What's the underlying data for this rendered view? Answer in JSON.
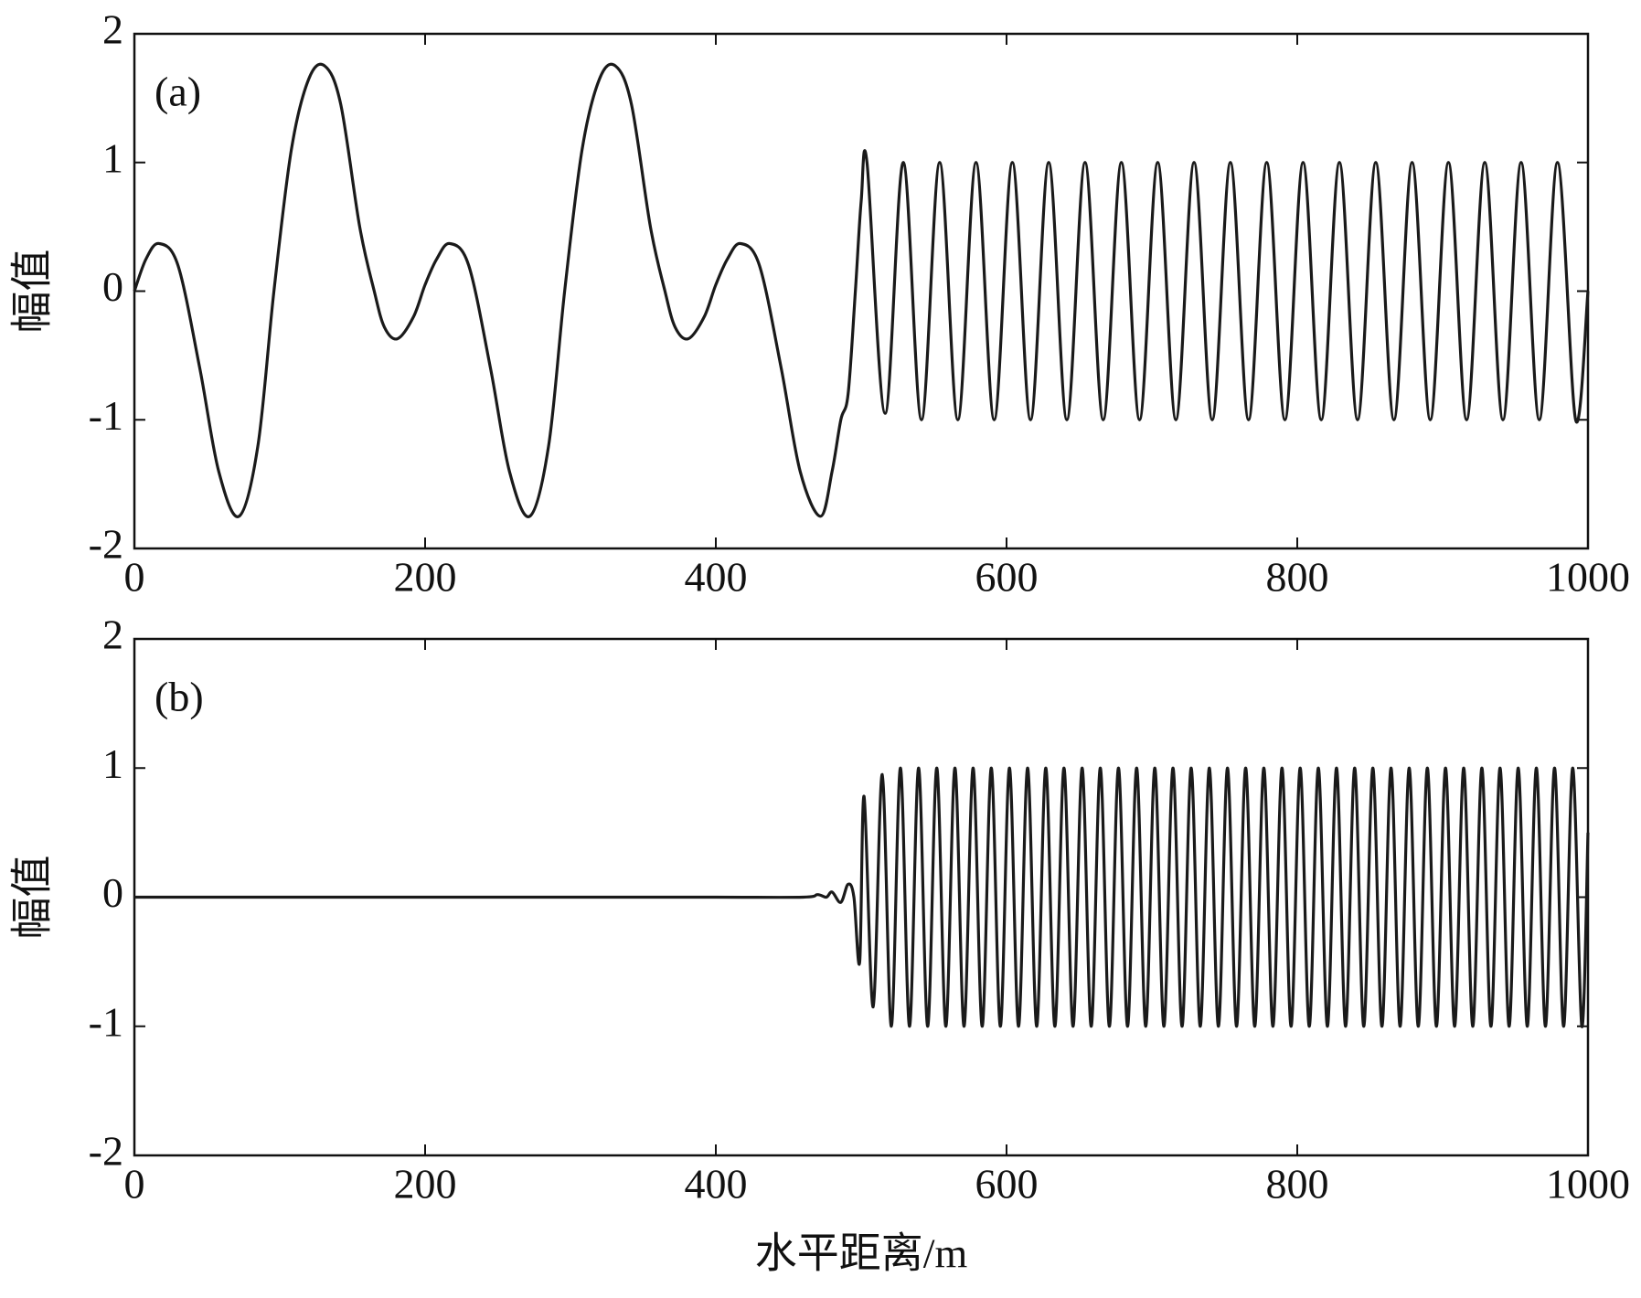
{
  "chart_data": [
    {
      "type": "line",
      "annotation": "(a)",
      "ylabel": "幅值",
      "x": [
        0,
        8,
        17,
        30,
        45,
        58,
        72,
        85,
        96,
        108,
        120,
        131,
        142,
        155,
        165,
        172,
        181,
        192,
        200,
        208,
        217,
        230,
        245,
        258,
        272,
        285,
        296,
        308,
        320,
        331,
        342,
        355,
        365,
        372,
        381,
        392,
        400,
        408,
        417,
        430,
        445,
        458,
        472,
        480,
        486,
        491,
        496,
        500,
        504,
        516.5,
        529,
        541.5,
        554,
        566.5,
        579,
        591.5,
        604,
        616.5,
        629,
        641.5,
        654,
        666.5,
        679,
        691.5,
        704,
        716.5,
        729,
        741.5,
        754,
        766.5,
        779,
        791.5,
        804,
        816.5,
        829,
        841.5,
        854,
        866.5,
        879,
        891.5,
        904,
        916.5,
        929,
        941.5,
        954,
        966.5,
        979,
        991.5,
        1000
      ],
      "series": [
        {
          "color": "#1a1a1a",
          "values": [
            0,
            0.25,
            0.37,
            0.2,
            -0.6,
            -1.4,
            -1.75,
            -1.2,
            0,
            1.1,
            1.65,
            1.75,
            1.45,
            0.5,
            0,
            -0.28,
            -0.37,
            -0.2,
            0.05,
            0.25,
            0.37,
            0.2,
            -0.6,
            -1.4,
            -1.75,
            -1.2,
            0,
            1.1,
            1.65,
            1.75,
            1.45,
            0.5,
            0,
            -0.28,
            -0.37,
            -0.2,
            0.05,
            0.25,
            0.37,
            0.2,
            -0.6,
            -1.4,
            -1.75,
            -1.4,
            -1,
            -0.8,
            0,
            0.7,
            1,
            -0.95,
            1,
            -1,
            1,
            -1,
            1,
            -1,
            1,
            -1,
            1,
            -1,
            1,
            -1,
            1,
            -1,
            1,
            -1,
            1,
            -1,
            1,
            -1,
            1,
            -1,
            1,
            -1,
            1,
            -1,
            1,
            -1,
            1,
            -1,
            1,
            -1,
            1,
            -1,
            1,
            -1,
            1,
            -1,
            0
          ]
        }
      ],
      "xlim": [
        0,
        1000
      ],
      "ylim": [
        -2,
        2
      ],
      "xticks": [
        0,
        200,
        400,
        600,
        800,
        1000
      ],
      "yticks": [
        -2,
        -1,
        0,
        1,
        2
      ]
    },
    {
      "type": "line",
      "annotation": "(b)",
      "ylabel": "幅值",
      "xlabel": "水平距离/m",
      "x": [
        0,
        100,
        200,
        300,
        400,
        460,
        470,
        476,
        480,
        486,
        491,
        495,
        499,
        502,
        508.25,
        514.5,
        520.75,
        527,
        533.25,
        539.5,
        545.75,
        552,
        558.25,
        564.5,
        570.75,
        577,
        583.25,
        589.5,
        595.75,
        602,
        608.25,
        614.5,
        620.75,
        627,
        633.25,
        639.5,
        645.75,
        652,
        658.25,
        664.5,
        670.75,
        677,
        683.25,
        689.5,
        695.75,
        702,
        708.25,
        714.5,
        720.75,
        727,
        733.25,
        739.5,
        745.75,
        752,
        758.25,
        764.5,
        770.75,
        777,
        783.25,
        789.5,
        795.75,
        802,
        808.25,
        814.5,
        820.75,
        827,
        833.25,
        839.5,
        845.75,
        852,
        858.25,
        864.5,
        870.75,
        877,
        883.25,
        889.5,
        895.75,
        902,
        908.25,
        914.5,
        920.75,
        927,
        933.25,
        939.5,
        945.75,
        952,
        958.25,
        964.5,
        970.75,
        977,
        983.25,
        989.5,
        995.75,
        1000
      ],
      "series": [
        {
          "color": "#1a1a1a",
          "values": [
            0,
            0,
            0,
            0,
            0,
            0,
            0.02,
            0,
            0.04,
            -0.04,
            0.1,
            0,
            -0.5,
            0.78,
            -0.85,
            0.95,
            -1,
            1,
            -1,
            1,
            -1,
            1,
            -1,
            1,
            -1,
            1,
            -1,
            1,
            -1,
            1,
            -1,
            1,
            -1,
            1,
            -1,
            1,
            -1,
            1,
            -1,
            1,
            -1,
            1,
            -1,
            1,
            -1,
            1,
            -1,
            1,
            -1,
            1,
            -1,
            1,
            -1,
            1,
            -1,
            1,
            -1,
            1,
            -1,
            1,
            -1,
            1,
            -1,
            1,
            -1,
            1,
            -1,
            1,
            -1,
            1,
            -1,
            1,
            -1,
            1,
            -1,
            1,
            -1,
            1,
            -1,
            1,
            -1,
            1,
            -1,
            1,
            -1,
            1,
            -1,
            1,
            -1,
            1,
            -1,
            1,
            -1,
            0.5
          ]
        }
      ],
      "xlim": [
        0,
        1000
      ],
      "ylim": [
        -2,
        2
      ],
      "xticks": [
        0,
        200,
        400,
        600,
        800,
        1000
      ],
      "yticks": [
        -2,
        -1,
        0,
        1,
        2
      ]
    }
  ]
}
